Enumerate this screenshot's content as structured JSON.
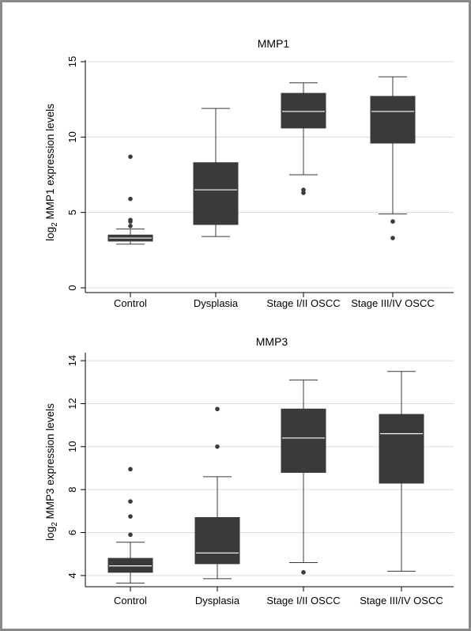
{
  "chart_data": [
    {
      "type": "box",
      "title": "MMP1",
      "ylabel": {
        "prefix": "log",
        "sub": "2",
        "suffix": " MMP1 expression levels"
      },
      "ylim": [
        0,
        15
      ],
      "yticks": [
        0,
        5,
        10,
        15
      ],
      "grid": true,
      "box_color": "#3a3a3a",
      "median_color": "#ffffff",
      "categories": [
        "Control",
        "Dysplasia",
        "Stage I/II OSCC",
        "Stage III/IV OSCC"
      ],
      "boxes": [
        {
          "category": "Control",
          "whisker_low": 2.9,
          "q1": 3.1,
          "median": 3.3,
          "q3": 3.5,
          "whisker_high": 3.9,
          "outliers": [
            4.1,
            4.4,
            4.5,
            5.9,
            8.7
          ]
        },
        {
          "category": "Dysplasia",
          "whisker_low": 3.4,
          "q1": 4.2,
          "median": 6.5,
          "q3": 8.3,
          "whisker_high": 11.9,
          "outliers": []
        },
        {
          "category": "Stage I/II OSCC",
          "whisker_low": 7.5,
          "q1": 10.6,
          "median": 11.7,
          "q3": 12.9,
          "whisker_high": 13.6,
          "outliers": [
            6.3,
            6.5
          ]
        },
        {
          "category": "Stage III/IV OSCC",
          "whisker_low": 4.9,
          "q1": 9.6,
          "median": 11.7,
          "q3": 12.7,
          "whisker_high": 14.0,
          "outliers": [
            3.3,
            4.4
          ]
        }
      ]
    },
    {
      "type": "box",
      "title": "MMP3",
      "ylabel": {
        "prefix": "log",
        "sub": "2",
        "suffix": " MMP3 expression levels"
      },
      "ylim": [
        3.7,
        14.3
      ],
      "yticks": [
        4,
        6,
        8,
        10,
        12,
        14
      ],
      "grid": true,
      "box_color": "#3a3a3a",
      "median_color": "#ffffff",
      "categories": [
        "Control",
        "Dysplasia",
        "Stage I/II OSCC",
        "Stage III/IV OSCC"
      ],
      "boxes": [
        {
          "category": "Control",
          "whisker_low": 3.65,
          "q1": 4.15,
          "median": 4.45,
          "q3": 4.8,
          "whisker_high": 5.55,
          "outliers": [
            5.9,
            6.75,
            7.45,
            8.95
          ]
        },
        {
          "category": "Dysplasia",
          "whisker_low": 3.85,
          "q1": 4.55,
          "median": 5.05,
          "q3": 6.7,
          "whisker_high": 8.6,
          "outliers": [
            10.0,
            11.75
          ]
        },
        {
          "category": "Stage I/II OSCC",
          "whisker_low": 4.6,
          "q1": 8.8,
          "median": 10.4,
          "q3": 11.75,
          "whisker_high": 13.1,
          "outliers": [
            4.15
          ]
        },
        {
          "category": "Stage III/IV OSCC",
          "whisker_low": 4.2,
          "q1": 8.3,
          "median": 10.6,
          "q3": 11.5,
          "whisker_high": 13.5,
          "outliers": []
        }
      ]
    }
  ]
}
